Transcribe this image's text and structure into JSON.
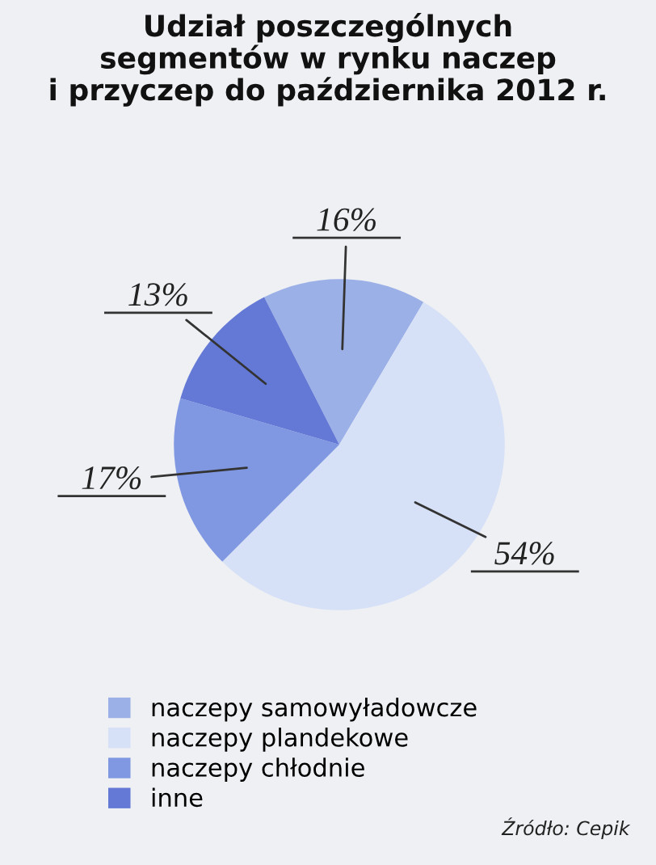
{
  "chart_data": {
    "type": "pie",
    "title": "Udział poszczególnych\nsegmentów w rynku naczep\ni przyczep do października 2012 r.",
    "categories": [
      "naczepy samowyładowcze",
      "naczepy plandekowe",
      "naczepy chłodnie",
      "inne"
    ],
    "values": [
      16,
      54,
      17,
      13
    ],
    "colors": [
      "#9cb0e8",
      "#d6e0f7",
      "#8098e2",
      "#6479d6"
    ],
    "value_labels": [
      "16%",
      "54%",
      "17%",
      "13%"
    ],
    "legend": "bottom",
    "annotations": [
      "Źródło: Cepik"
    ]
  }
}
